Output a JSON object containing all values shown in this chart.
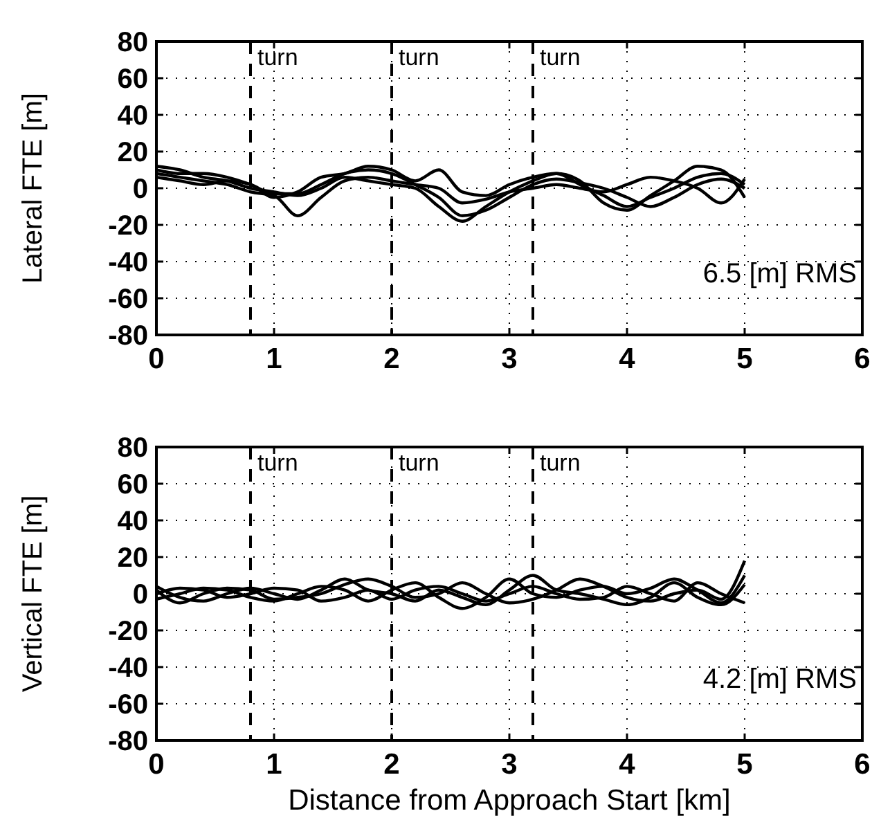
{
  "chart_data": [
    {
      "type": "line",
      "ylabel": "Lateral FTE [m]",
      "annotations": [
        "6.5 [m] RMS"
      ],
      "x": [
        0,
        0.2,
        0.4,
        0.6,
        0.8,
        1,
        1.2,
        1.4,
        1.6,
        1.8,
        2,
        2.2,
        2.4,
        2.6,
        2.8,
        3,
        3.2,
        3.4,
        3.6,
        3.8,
        4,
        4.2,
        4.4,
        4.6,
        4.8,
        5
      ],
      "series": [
        {
          "color": "#000000",
          "values": [
            10,
            8,
            8,
            6,
            2,
            -3,
            -3,
            2,
            8,
            10,
            8,
            2,
            -5,
            -15,
            -12,
            -5,
            2,
            5,
            3,
            0,
            -5,
            -10,
            -5,
            2,
            5,
            0
          ]
        },
        {
          "color": "#000000",
          "values": [
            12,
            10,
            6,
            4,
            0,
            -2,
            -4,
            0,
            6,
            4,
            2,
            0,
            -10,
            -18,
            -10,
            -2,
            4,
            8,
            2,
            -4,
            -10,
            -5,
            0,
            6,
            8,
            2
          ]
        },
        {
          "color": "#000000",
          "values": [
            8,
            6,
            4,
            2,
            -2,
            -4,
            -15,
            -5,
            4,
            6,
            4,
            2,
            0,
            -8,
            -6,
            -2,
            0,
            2,
            0,
            -2,
            2,
            6,
            4,
            0,
            -8,
            5
          ]
        },
        {
          "color": "#000000",
          "values": [
            6,
            4,
            2,
            4,
            2,
            -5,
            -2,
            6,
            8,
            12,
            10,
            4,
            10,
            -2,
            -4,
            2,
            6,
            8,
            4,
            -8,
            -12,
            -4,
            4,
            12,
            10,
            -5
          ]
        }
      ],
      "xlim": [
        0,
        6
      ],
      "xticks": [
        0,
        1,
        2,
        3,
        4,
        5,
        6
      ],
      "ylim": [
        -80,
        80
      ],
      "yticks": [
        -80,
        -60,
        -40,
        -20,
        0,
        20,
        40,
        60,
        80
      ],
      "grid": true,
      "line_style": "solid",
      "marker": "none",
      "ref_lines": [
        {
          "axis": "x",
          "value": 0.8,
          "label": "turn",
          "line_style": "dashed"
        },
        {
          "axis": "x",
          "value": 2,
          "label": "turn",
          "line_style": "dashed"
        },
        {
          "axis": "x",
          "value": 3.2,
          "label": "turn",
          "line_style": "dashed"
        }
      ]
    },
    {
      "type": "line",
      "ylabel": "Vertical FTE [m]",
      "xlabel": "Distance from Approach Start [km]",
      "annotations": [
        "4.2 [m] RMS"
      ],
      "x": [
        0,
        0.2,
        0.4,
        0.6,
        0.8,
        1,
        1.2,
        1.4,
        1.6,
        1.8,
        2,
        2.2,
        2.4,
        2.6,
        2.8,
        3,
        3.2,
        3.4,
        3.6,
        3.8,
        4,
        4.2,
        4.4,
        4.6,
        4.8,
        5
      ],
      "series": [
        {
          "color": "#000000",
          "values": [
            2,
            -5,
            0,
            3,
            2,
            -3,
            -2,
            0,
            5,
            8,
            4,
            -2,
            0,
            6,
            0,
            -5,
            -3,
            2,
            8,
            4,
            -2,
            -4,
            0,
            2,
            -3,
            18
          ]
        },
        {
          "color": "#000000",
          "values": [
            -3,
            0,
            3,
            2,
            -2,
            -4,
            0,
            4,
            2,
            -4,
            2,
            6,
            -2,
            -8,
            -2,
            8,
            0,
            -2,
            2,
            4,
            0,
            3,
            8,
            2,
            -5,
            10
          ]
        },
        {
          "color": "#000000",
          "values": [
            0,
            3,
            2,
            -2,
            0,
            3,
            2,
            -4,
            -2,
            2,
            -3,
            2,
            4,
            0,
            -4,
            0,
            4,
            0,
            -3,
            -2,
            4,
            0,
            -4,
            6,
            0,
            -5
          ]
        },
        {
          "color": "#000000",
          "values": [
            4,
            -2,
            -4,
            0,
            3,
            0,
            -3,
            2,
            8,
            2,
            0,
            -4,
            2,
            -2,
            -6,
            2,
            10,
            2,
            0,
            -3,
            -6,
            -2,
            6,
            -2,
            -6,
            5
          ]
        }
      ],
      "xlim": [
        0,
        6
      ],
      "xticks": [
        0,
        1,
        2,
        3,
        4,
        5,
        6
      ],
      "ylim": [
        -80,
        80
      ],
      "yticks": [
        -80,
        -60,
        -40,
        -20,
        0,
        20,
        40,
        60,
        80
      ],
      "grid": true,
      "line_style": "solid",
      "marker": "none",
      "ref_lines": [
        {
          "axis": "x",
          "value": 0.8,
          "label": "turn",
          "line_style": "dashed"
        },
        {
          "axis": "x",
          "value": 2,
          "label": "turn",
          "line_style": "dashed"
        },
        {
          "axis": "x",
          "value": 3.2,
          "label": "turn",
          "line_style": "dashed"
        }
      ]
    }
  ]
}
